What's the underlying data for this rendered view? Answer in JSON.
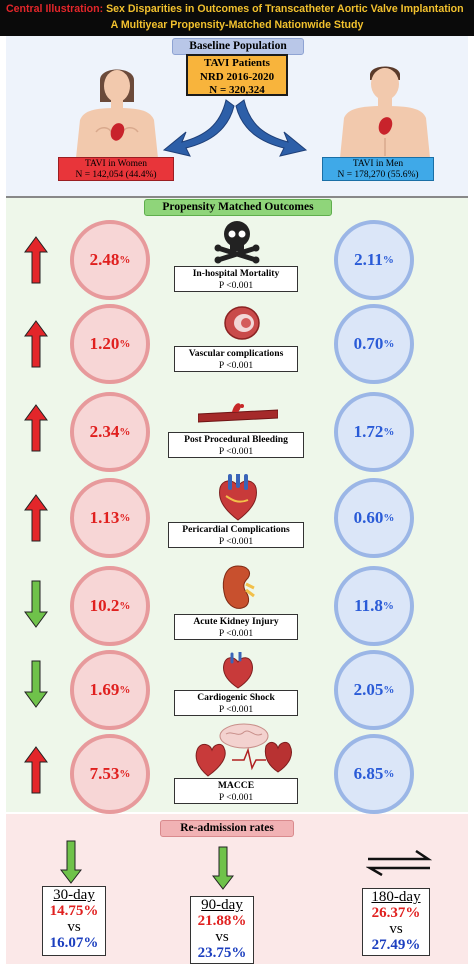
{
  "header": {
    "label": "Central Illustration:",
    "title_line1": "Sex Disparities in Outcomes of Transcatheter Aortic Valve Implantation",
    "title_line2": "A Multiyear Propensity-Matched Nationwide Study"
  },
  "baseline": {
    "section_title": "Baseline Population",
    "tavi_box": [
      "TAVI Patients",
      "NRD 2016-2020",
      "N = 320,324"
    ],
    "women": {
      "label": "TAVI in Women",
      "n": "N = 142,054 (44.4%)"
    },
    "men": {
      "label": "TAVI in Men",
      "n": "N = 178,270 (55.6%)"
    }
  },
  "outcomes": {
    "section_title": "Propensity Matched Outcomes",
    "items": [
      {
        "name": "In-hospital Mortality",
        "p": "P <0.001",
        "women": "2.48",
        "men": "2.11",
        "direction": "up",
        "icon": "skull-crossbones-icon"
      },
      {
        "name": "Vascular complications",
        "p": "P <0.001",
        "women": "1.20",
        "men": "0.70",
        "direction": "up",
        "icon": "vessel-icon"
      },
      {
        "name": "Post Procedural Bleeding",
        "p": "P <0.001",
        "women": "2.34",
        "men": "1.72",
        "direction": "up",
        "icon": "bleeding-vessel-icon"
      },
      {
        "name": "Pericardial Complications",
        "p": "P <0.001",
        "women": "1.13",
        "men": "0.60",
        "direction": "up",
        "icon": "heart-icon"
      },
      {
        "name": "Acute Kidney Injury",
        "p": "P <0.001",
        "women": "10.2",
        "men": "11.8",
        "direction": "down",
        "icon": "kidney-icon"
      },
      {
        "name": "Cardiogenic Shock",
        "p": "P <0.001",
        "women": "1.69",
        "men": "2.05",
        "direction": "down",
        "icon": "heart-shock-icon"
      },
      {
        "name": "MACCE",
        "p": "P <0.001",
        "women": "7.53",
        "men": "6.85",
        "direction": "up",
        "icon": "brain-heart-icon"
      }
    ],
    "percent": "%"
  },
  "readmission": {
    "section_title": "Re-admission rates",
    "items": [
      {
        "day": "30-day",
        "women": "14.75%",
        "vs": "vs",
        "men": "16.07%",
        "trend": "down"
      },
      {
        "day": "90-day",
        "women": "21.88%",
        "vs": "vs",
        "men": "23.75%",
        "trend": "down"
      },
      {
        "day": "180-day",
        "women": "26.37%",
        "vs": "vs",
        "men": "27.49%",
        "trend": "equal"
      }
    ]
  },
  "colors": {
    "women": "#e0201f",
    "men": "#2a5bd7",
    "up_arrow": "#e3262a",
    "down_arrow": "#6fc24a",
    "header_bg": "#0a0a0a",
    "title": "#f2c12e"
  }
}
